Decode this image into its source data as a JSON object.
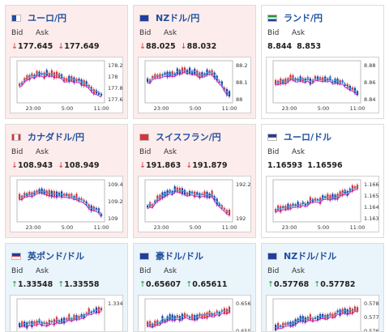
{
  "cards": [
    {
      "pair": "ユーロ/円",
      "bid_label": "Bid",
      "ask_label": "Ask",
      "bid": "177.645",
      "ask": "177.649",
      "dir": "down",
      "y_ticks": [
        "178.2",
        "178",
        "177.8",
        "177.6"
      ],
      "x_ticks": [
        "23:00",
        "5:00",
        "11:00"
      ]
    },
    {
      "pair": "NZドル/円",
      "bid_label": "Bid",
      "ask_label": "Ask",
      "bid": "88.025",
      "ask": "88.032",
      "dir": "down",
      "y_ticks": [
        "88.2",
        "88.1",
        "88"
      ],
      "x_ticks": [
        "23:00",
        "5:00",
        "11:00"
      ]
    },
    {
      "pair": "ランド/円",
      "bid_label": "Bid",
      "ask_label": "Ask",
      "bid": "8.844",
      "ask": "8.853",
      "dir": "none",
      "y_ticks": [
        "8.88",
        "8.86",
        "8.84"
      ],
      "x_ticks": [
        "23:00",
        "5:00",
        "11:00"
      ]
    },
    {
      "pair": "カナダドル/円",
      "bid_label": "Bid",
      "ask_label": "Ask",
      "bid": "108.943",
      "ask": "108.949",
      "dir": "down",
      "y_ticks": [
        "109.4",
        "109.2",
        "109"
      ],
      "x_ticks": [
        "23:00",
        "5:00",
        "11:00"
      ]
    },
    {
      "pair": "スイスフラン/円",
      "bid_label": "Bid",
      "ask_label": "Ask",
      "bid": "191.863",
      "ask": "191.879",
      "dir": "down",
      "y_ticks": [
        "192.2",
        "192"
      ],
      "x_ticks": [
        "23:00",
        "5:00",
        "11:00"
      ]
    },
    {
      "pair": "ユーロ/ドル",
      "bid_label": "Bid",
      "ask_label": "Ask",
      "bid": "1.16593",
      "ask": "1.16596",
      "dir": "none",
      "y_ticks": [
        "1.166",
        "1.165",
        "1.164",
        "1.163"
      ],
      "x_ticks": [
        "23:00",
        "5:00",
        "11:00"
      ]
    },
    {
      "pair": "英ポンド/ドル",
      "bid_label": "Bid",
      "ask_label": "Ask",
      "bid": "1.33548",
      "ask": "1.33558",
      "dir": "up",
      "y_ticks": [
        "1.334"
      ],
      "x_ticks": []
    },
    {
      "pair": "豪ドル/ドル",
      "bid_label": "Bid",
      "ask_label": "Ask",
      "bid": "0.65607",
      "ask": "0.65611",
      "dir": "up",
      "y_ticks": [
        "0.656",
        "0.655"
      ],
      "x_ticks": []
    },
    {
      "pair": "NZドル/ドル",
      "bid_label": "Bid",
      "ask_label": "Ask",
      "bid": "0.57768",
      "ask": "0.57782",
      "dir": "up",
      "y_ticks": [
        "0.578",
        "0.577",
        "0.576"
      ],
      "x_ticks": []
    }
  ],
  "colors": {
    "down_bg": "#fdecec",
    "up_bg": "#eaf4fb",
    "candle_up": "#d9333a",
    "candle_down": "#1f3f9f",
    "ma_fast": "#3fb0e0",
    "ma_slow": "#c02bd0"
  }
}
